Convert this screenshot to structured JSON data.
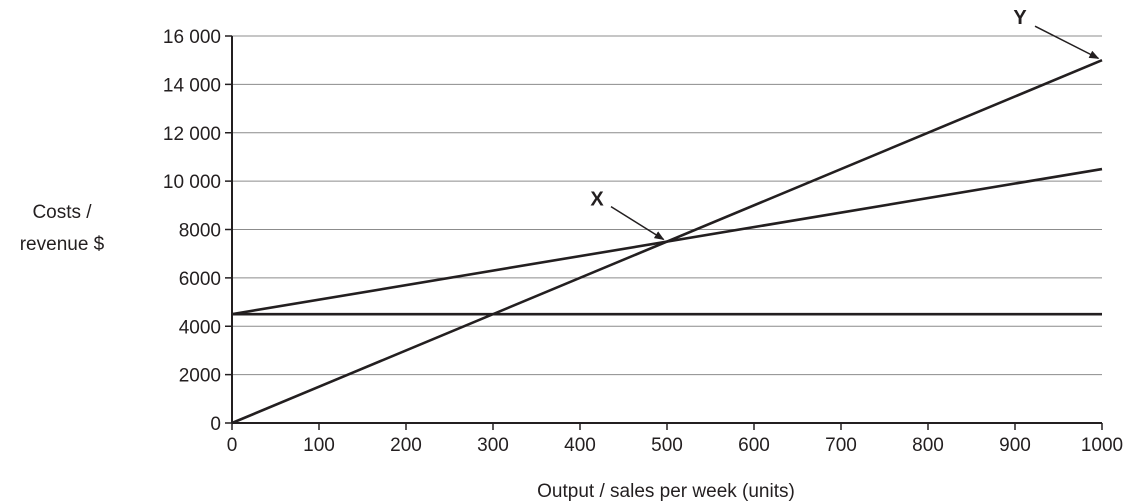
{
  "chart_data": {
    "type": "line",
    "title": "",
    "xlabel": "Output / sales per week (units)",
    "ylabel_lines": [
      "Costs /",
      "revenue $"
    ],
    "xlim": [
      0,
      1000
    ],
    "ylim": [
      0,
      16000
    ],
    "x_ticks": [
      0,
      100,
      200,
      300,
      400,
      500,
      600,
      700,
      800,
      900,
      1000
    ],
    "y_ticks": [
      0,
      2000,
      4000,
      6000,
      8000,
      10000,
      12000,
      14000,
      16000
    ],
    "x_tick_labels": [
      "0",
      "100",
      "200",
      "300",
      "400",
      "500",
      "600",
      "700",
      "800",
      "900",
      "1000"
    ],
    "y_tick_labels": [
      "0",
      "2000",
      "4000",
      "6000",
      "8000",
      "10 000",
      "12 000",
      "14 000",
      "16 000"
    ],
    "grid": "horizontal",
    "series": [
      {
        "x": [
          0,
          1000
        ],
        "y": [
          4500,
          4500
        ]
      },
      {
        "x": [
          0,
          1000
        ],
        "y": [
          4500,
          10500
        ]
      },
      {
        "x": [
          0,
          1000
        ],
        "y": [
          0,
          15000
        ]
      }
    ],
    "annotations": [
      {
        "text": "X",
        "points_to": [
          500,
          7500
        ]
      },
      {
        "text": "Y",
        "points_to": [
          1000,
          15000
        ]
      }
    ],
    "line_color": "#231f20",
    "grid_color": "#8c8c8c"
  }
}
